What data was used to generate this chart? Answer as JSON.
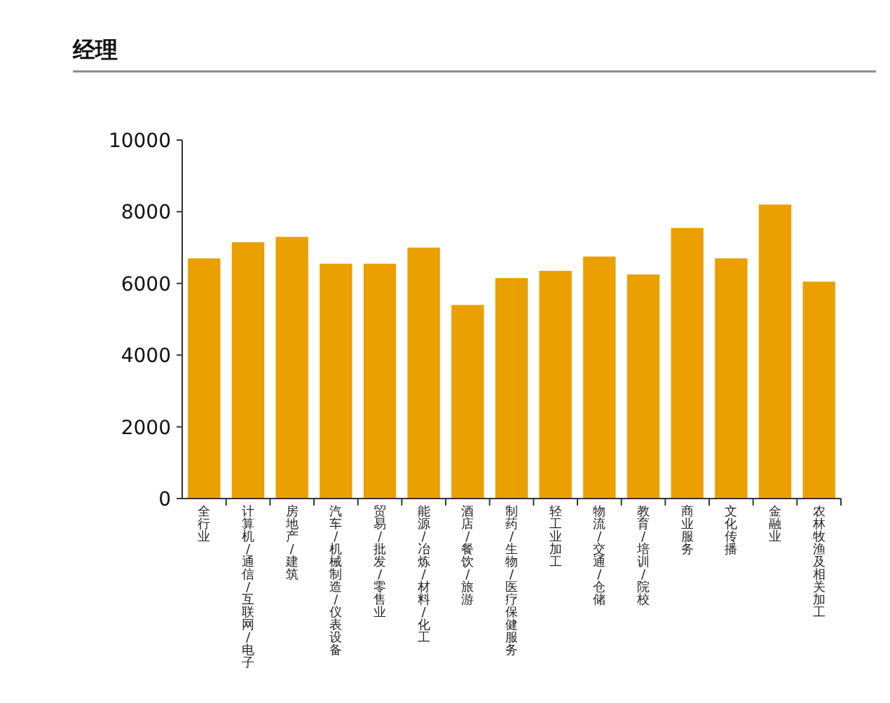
{
  "chart_data": {
    "type": "bar",
    "title": "经理",
    "categories": [
      "全行业",
      "计算机/通信/互联网/电子",
      "房地产/建筑",
      "汽车/机械制造/仪表设备",
      "贸易/批发/零售业",
      "能源/冶炼/材料/化工",
      "酒店/餐饮/旅游",
      "制药/生物/医疗保健服务",
      "轻工业加工",
      "物流/交通/仓储",
      "教育/培训/院校",
      "商业服务",
      "文化传播",
      "金融业",
      "农林牧渔及相关加工"
    ],
    "values": [
      6700,
      7150,
      7300,
      6550,
      6550,
      7000,
      5400,
      6150,
      6350,
      6750,
      6250,
      7550,
      6700,
      8200,
      6050
    ],
    "color": "#eaa000",
    "ylim": [
      0,
      10000
    ],
    "yticks": [
      0,
      2000,
      4000,
      6000,
      8000,
      10000
    ],
    "grid": false
  }
}
